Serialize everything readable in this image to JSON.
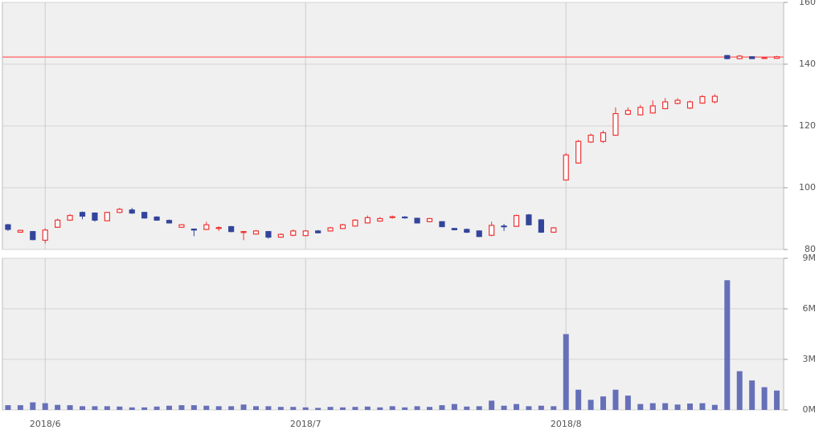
{
  "chart_data": [
    {
      "type": "candlestick",
      "categories": [
        null,
        null,
        null,
        "2018/6",
        null,
        null,
        null,
        null,
        null,
        null,
        null,
        null,
        null,
        null,
        null,
        null,
        null,
        null,
        null,
        null,
        null,
        null,
        null,
        null,
        "2018/7",
        null,
        null,
        null,
        null,
        null,
        null,
        null,
        null,
        null,
        null,
        null,
        null,
        null,
        null,
        null,
        null,
        null,
        null,
        null,
        null,
        "2018/8",
        null,
        null,
        null,
        null,
        null,
        null,
        null,
        null,
        null,
        null,
        null,
        null,
        null,
        null,
        null,
        null,
        null
      ],
      "open": [
        88,
        85.6,
        85.8,
        83,
        87.2,
        89.5,
        92,
        91.8,
        89.3,
        92,
        92.8,
        92,
        90.5,
        89.4,
        87.2,
        86.6,
        86.5,
        86.8,
        87.4,
        85.5,
        85,
        85.8,
        84,
        84.6,
        84.5,
        86,
        86,
        86.8,
        87.6,
        88.6,
        89.2,
        90.4,
        90.5,
        90.1,
        89,
        89,
        86.8,
        86.5,
        86,
        84.6,
        87.6,
        87.5,
        91.2,
        89.6,
        85.6,
        102.5,
        108,
        114.8,
        115,
        117,
        123.8,
        123.6,
        124.2,
        125.6,
        127.3,
        125.8,
        127.4,
        127.8,
        142.8,
        141.8,
        142.4,
        141.9,
        141.9
      ],
      "high": [
        88.3,
        86.4,
        86,
        86.8,
        90,
        91.5,
        92.3,
        92,
        92.2,
        93.5,
        93.5,
        92.2,
        90.8,
        89.7,
        88.2,
        86.8,
        89,
        87.5,
        87.6,
        86,
        86.3,
        86,
        85.2,
        86.5,
        86.3,
        86.3,
        87.3,
        88.3,
        89.8,
        91,
        90.5,
        91,
        90.8,
        90.3,
        90.2,
        89.2,
        87,
        86.8,
        86.2,
        89,
        88.3,
        91.3,
        91.5,
        89.8,
        87.3,
        111.2,
        115.5,
        117.5,
        118.5,
        126,
        126,
        126.8,
        128.3,
        129,
        129,
        128.2,
        130,
        130.3,
        143,
        143,
        142.6,
        142.3,
        142.7
      ],
      "low": [
        86,
        85.4,
        83,
        82,
        87,
        89.3,
        89.8,
        89,
        89.2,
        91.8,
        91.5,
        90,
        89.3,
        88.4,
        87,
        84.3,
        86.3,
        86,
        85.6,
        83,
        84.8,
        83.5,
        83.8,
        84.3,
        84.3,
        85.2,
        85.8,
        86.6,
        87.4,
        88.4,
        89,
        90,
        90,
        88.4,
        88.8,
        87.2,
        86.2,
        85.3,
        84,
        84.3,
        86,
        87.3,
        87.8,
        85.4,
        85.4,
        102.3,
        107.8,
        114.5,
        114.5,
        116.8,
        123.5,
        123.4,
        124,
        125.4,
        127,
        125.5,
        127.2,
        127.3,
        141.6,
        141.6,
        141.7,
        141.7,
        141.8
      ],
      "close": [
        86.5,
        86.2,
        83.2,
        86.3,
        89.5,
        91,
        90.8,
        89.5,
        92,
        93,
        91.8,
        90.2,
        89.5,
        88.6,
        88,
        86.3,
        88,
        87.1,
        85.8,
        85.8,
        86,
        84,
        84.9,
        86,
        86,
        85.4,
        87,
        88,
        89.5,
        90.3,
        90,
        90.6,
        90.3,
        88.6,
        90,
        87.4,
        86.4,
        85.6,
        84.2,
        87.8,
        87.4,
        91,
        88,
        85.6,
        87,
        110.6,
        115,
        117,
        117.8,
        124,
        125,
        126,
        126.5,
        127.8,
        128.3,
        127.8,
        129.5,
        129.6,
        141.8,
        142.6,
        141.8,
        142.1,
        142.4
      ],
      "up_color": "#ee3333",
      "down_color": "#33449a",
      "hline": 142.3,
      "hline_color": "#ff7777",
      "ylim": [
        80,
        160
      ],
      "yticks": [
        80,
        100,
        120,
        140,
        160
      ],
      "grid": true
    },
    {
      "type": "bar",
      "categories": [
        null,
        null,
        null,
        "2018/6",
        null,
        null,
        null,
        null,
        null,
        null,
        null,
        null,
        null,
        null,
        null,
        null,
        null,
        null,
        null,
        null,
        null,
        null,
        null,
        null,
        "2018/7",
        null,
        null,
        null,
        null,
        null,
        null,
        null,
        null,
        null,
        null,
        null,
        null,
        null,
        null,
        null,
        null,
        null,
        null,
        null,
        null,
        "2018/8",
        null,
        null,
        null,
        null,
        null,
        null,
        null,
        null,
        null,
        null,
        null,
        null,
        null,
        null,
        null,
        null,
        null
      ],
      "values": [
        0.28,
        0.28,
        0.45,
        0.4,
        0.3,
        0.28,
        0.22,
        0.22,
        0.22,
        0.2,
        0.15,
        0.15,
        0.2,
        0.25,
        0.28,
        0.28,
        0.25,
        0.22,
        0.22,
        0.32,
        0.22,
        0.22,
        0.18,
        0.18,
        0.15,
        0.12,
        0.18,
        0.15,
        0.18,
        0.2,
        0.15,
        0.22,
        0.15,
        0.22,
        0.18,
        0.28,
        0.35,
        0.2,
        0.22,
        0.55,
        0.25,
        0.35,
        0.22,
        0.25,
        0.22,
        4.5,
        1.2,
        0.6,
        0.8,
        1.2,
        0.85,
        0.35,
        0.4,
        0.4,
        0.32,
        0.38,
        0.4,
        0.3,
        7.7,
        2.3,
        1.75,
        1.35,
        1.15
      ],
      "color": "#6670b8",
      "ylim": [
        0,
        9
      ],
      "yticks": [
        {
          "value": 0,
          "label": "0M"
        },
        {
          "value": 3,
          "label": "3M"
        },
        {
          "value": 6,
          "label": "6M"
        },
        {
          "value": 9,
          "label": "9M"
        }
      ],
      "grid": true
    }
  ]
}
